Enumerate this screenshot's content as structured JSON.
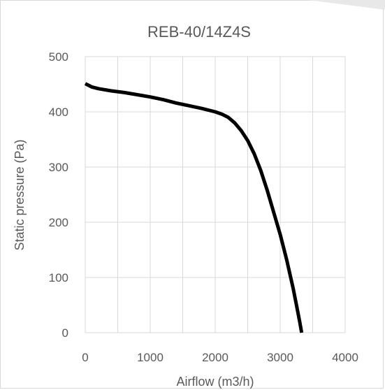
{
  "chart_data": {
    "type": "line",
    "title": "REB-40/14Z4S",
    "xlabel": "Airflow (m3/h)",
    "ylabel": "Static pressure (Pa)",
    "xlim": [
      0,
      4000
    ],
    "ylim": [
      0,
      500
    ],
    "x_ticks": [
      "0",
      "1000",
      "2000",
      "3000",
      "4000"
    ],
    "y_ticks": [
      "0",
      "100",
      "200",
      "300",
      "400",
      "500"
    ],
    "grid": true,
    "legend": "none",
    "series": [
      {
        "color": "#000000",
        "x": [
          0,
          100,
          200,
          400,
          600,
          800,
          1000,
          1200,
          1400,
          1600,
          1800,
          2000,
          2100,
          2200,
          2300,
          2400,
          2500,
          2600,
          2700,
          2800,
          2900,
          3000,
          3100,
          3200,
          3250,
          3300,
          3330
        ],
        "y": [
          451,
          445,
          442,
          438,
          435,
          431,
          427,
          422,
          416,
          411,
          406,
          400,
          396,
          390,
          380,
          366,
          348,
          324,
          294,
          258,
          218,
          178,
          132,
          80,
          50,
          20,
          0
        ]
      }
    ],
    "colors": {
      "line": "#000000",
      "grid": "#d9d9d9",
      "text": "#595959"
    }
  }
}
